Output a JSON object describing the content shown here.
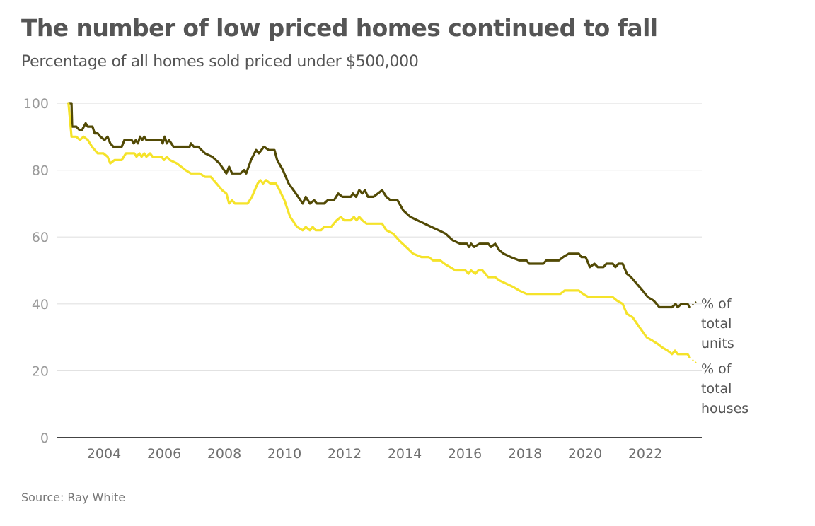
{
  "header": {
    "title": "The number of low priced homes continued to fall",
    "subtitle": "Percentage of all homes sold priced under $500,000"
  },
  "footer": {
    "source": "Source: Ray White"
  },
  "chart_data": {
    "type": "line",
    "title": "The number of low priced homes continued to fall",
    "subtitle": "Percentage of all homes sold priced under $500,000",
    "xlabel": "",
    "ylabel": "",
    "xlim": [
      2002.7,
      2023.9
    ],
    "ylim": [
      0,
      100
    ],
    "yticks": [
      0,
      20,
      40,
      60,
      80,
      100
    ],
    "xticks": [
      2004,
      2006,
      2008,
      2010,
      2012,
      2014,
      2016,
      2018,
      2020,
      2022
    ],
    "grid": true,
    "legend": "direct labels at right end of lines",
    "source": "Source: Ray White",
    "series": [
      {
        "name": "% of total units",
        "label_lines": [
          "% of",
          "total",
          "units"
        ],
        "color": "#524a05",
        "points": [
          [
            2002.82,
            100
          ],
          [
            2002.92,
            100
          ],
          [
            2002.94,
            93
          ],
          [
            2003.08,
            93
          ],
          [
            2003.18,
            92
          ],
          [
            2003.27,
            92
          ],
          [
            2003.39,
            94
          ],
          [
            2003.46,
            93
          ],
          [
            2003.62,
            93
          ],
          [
            2003.69,
            91
          ],
          [
            2003.79,
            91
          ],
          [
            2003.88,
            90
          ],
          [
            2004.02,
            89
          ],
          [
            2004.12,
            90
          ],
          [
            2004.21,
            88
          ],
          [
            2004.31,
            87
          ],
          [
            2004.59,
            87
          ],
          [
            2004.68,
            89
          ],
          [
            2004.92,
            89
          ],
          [
            2004.99,
            88
          ],
          [
            2005.06,
            89
          ],
          [
            2005.13,
            88
          ],
          [
            2005.2,
            90
          ],
          [
            2005.27,
            89
          ],
          [
            2005.34,
            90
          ],
          [
            2005.41,
            89
          ],
          [
            2005.91,
            89
          ],
          [
            2005.95,
            88
          ],
          [
            2006.02,
            90
          ],
          [
            2006.09,
            88
          ],
          [
            2006.16,
            89
          ],
          [
            2006.24,
            88
          ],
          [
            2006.31,
            87
          ],
          [
            2006.85,
            87
          ],
          [
            2006.89,
            88
          ],
          [
            2006.99,
            87
          ],
          [
            2007.13,
            87
          ],
          [
            2007.36,
            85
          ],
          [
            2007.6,
            84
          ],
          [
            2007.84,
            82
          ],
          [
            2008.07,
            79
          ],
          [
            2008.16,
            81
          ],
          [
            2008.26,
            79
          ],
          [
            2008.54,
            79
          ],
          [
            2008.66,
            80
          ],
          [
            2008.73,
            79
          ],
          [
            2008.89,
            83
          ],
          [
            2009.06,
            86
          ],
          [
            2009.15,
            85
          ],
          [
            2009.32,
            87
          ],
          [
            2009.48,
            86
          ],
          [
            2009.67,
            86
          ],
          [
            2009.76,
            83
          ],
          [
            2009.95,
            80
          ],
          [
            2010.14,
            76
          ],
          [
            2010.38,
            73
          ],
          [
            2010.61,
            70
          ],
          [
            2010.71,
            72
          ],
          [
            2010.85,
            70
          ],
          [
            2010.99,
            71
          ],
          [
            2011.08,
            70
          ],
          [
            2011.32,
            70
          ],
          [
            2011.44,
            71
          ],
          [
            2011.65,
            71
          ],
          [
            2011.79,
            73
          ],
          [
            2011.93,
            72
          ],
          [
            2012.21,
            72
          ],
          [
            2012.28,
            73
          ],
          [
            2012.38,
            72
          ],
          [
            2012.49,
            74
          ],
          [
            2012.59,
            73
          ],
          [
            2012.68,
            74
          ],
          [
            2012.78,
            72
          ],
          [
            2012.96,
            72
          ],
          [
            2013.11,
            73
          ],
          [
            2013.25,
            74
          ],
          [
            2013.39,
            72
          ],
          [
            2013.53,
            71
          ],
          [
            2013.76,
            71
          ],
          [
            2013.95,
            68
          ],
          [
            2014.19,
            66
          ],
          [
            2014.42,
            65
          ],
          [
            2014.66,
            64
          ],
          [
            2014.89,
            63
          ],
          [
            2015.13,
            62
          ],
          [
            2015.36,
            61
          ],
          [
            2015.6,
            59
          ],
          [
            2015.84,
            58
          ],
          [
            2016.07,
            58
          ],
          [
            2016.14,
            57
          ],
          [
            2016.21,
            58
          ],
          [
            2016.31,
            57
          ],
          [
            2016.49,
            58
          ],
          [
            2016.78,
            58
          ],
          [
            2016.87,
            57
          ],
          [
            2017.01,
            58
          ],
          [
            2017.15,
            56
          ],
          [
            2017.29,
            55
          ],
          [
            2017.53,
            54
          ],
          [
            2017.81,
            53
          ],
          [
            2018.05,
            53
          ],
          [
            2018.14,
            52
          ],
          [
            2018.61,
            52
          ],
          [
            2018.71,
            53
          ],
          [
            2019.13,
            53
          ],
          [
            2019.27,
            54
          ],
          [
            2019.46,
            55
          ],
          [
            2019.79,
            55
          ],
          [
            2019.88,
            54
          ],
          [
            2020.02,
            54
          ],
          [
            2020.16,
            51
          ],
          [
            2020.31,
            52
          ],
          [
            2020.42,
            51
          ],
          [
            2020.61,
            51
          ],
          [
            2020.71,
            52
          ],
          [
            2020.92,
            52
          ],
          [
            2021.01,
            51
          ],
          [
            2021.11,
            52
          ],
          [
            2021.25,
            52
          ],
          [
            2021.39,
            49
          ],
          [
            2021.53,
            48
          ],
          [
            2021.72,
            46
          ],
          [
            2021.91,
            44
          ],
          [
            2022.09,
            42
          ],
          [
            2022.28,
            41
          ],
          [
            2022.47,
            39
          ],
          [
            2022.89,
            39
          ],
          [
            2023.01,
            40
          ],
          [
            2023.08,
            39
          ],
          [
            2023.2,
            40
          ],
          [
            2023.41,
            40
          ],
          [
            2023.48,
            39
          ]
        ],
        "projected_to": [
          2023.74,
          41
        ]
      },
      {
        "name": "% of total houses",
        "label_lines": [
          "% of",
          "total",
          "houses"
        ],
        "color": "#f5e32a",
        "points": [
          [
            2002.82,
            100
          ],
          [
            2002.92,
            90
          ],
          [
            2003.08,
            90
          ],
          [
            2003.2,
            89
          ],
          [
            2003.32,
            90
          ],
          [
            2003.46,
            89
          ],
          [
            2003.6,
            87
          ],
          [
            2003.79,
            85
          ],
          [
            2003.98,
            85
          ],
          [
            2004.12,
            84
          ],
          [
            2004.21,
            82
          ],
          [
            2004.35,
            83
          ],
          [
            2004.59,
            83
          ],
          [
            2004.73,
            85
          ],
          [
            2005.01,
            85
          ],
          [
            2005.08,
            84
          ],
          [
            2005.18,
            85
          ],
          [
            2005.25,
            84
          ],
          [
            2005.34,
            85
          ],
          [
            2005.41,
            84
          ],
          [
            2005.53,
            85
          ],
          [
            2005.62,
            84
          ],
          [
            2005.91,
            84
          ],
          [
            2006.0,
            83
          ],
          [
            2006.09,
            84
          ],
          [
            2006.19,
            83
          ],
          [
            2006.42,
            82
          ],
          [
            2006.71,
            80
          ],
          [
            2006.89,
            79
          ],
          [
            2007.18,
            79
          ],
          [
            2007.36,
            78
          ],
          [
            2007.55,
            78
          ],
          [
            2007.74,
            76
          ],
          [
            2007.93,
            74
          ],
          [
            2008.07,
            73
          ],
          [
            2008.16,
            70
          ],
          [
            2008.26,
            71
          ],
          [
            2008.35,
            70
          ],
          [
            2008.78,
            70
          ],
          [
            2008.92,
            72
          ],
          [
            2009.11,
            76
          ],
          [
            2009.2,
            77
          ],
          [
            2009.29,
            76
          ],
          [
            2009.39,
            77
          ],
          [
            2009.53,
            76
          ],
          [
            2009.72,
            76
          ],
          [
            2009.84,
            74
          ],
          [
            2010.0,
            71
          ],
          [
            2010.19,
            66
          ],
          [
            2010.42,
            63
          ],
          [
            2010.61,
            62
          ],
          [
            2010.71,
            63
          ],
          [
            2010.85,
            62
          ],
          [
            2010.94,
            63
          ],
          [
            2011.04,
            62
          ],
          [
            2011.22,
            62
          ],
          [
            2011.32,
            63
          ],
          [
            2011.55,
            63
          ],
          [
            2011.74,
            65
          ],
          [
            2011.88,
            66
          ],
          [
            2011.98,
            65
          ],
          [
            2012.21,
            65
          ],
          [
            2012.31,
            66
          ],
          [
            2012.4,
            65
          ],
          [
            2012.49,
            66
          ],
          [
            2012.59,
            65
          ],
          [
            2012.73,
            64
          ],
          [
            2013.25,
            64
          ],
          [
            2013.39,
            62
          ],
          [
            2013.62,
            61
          ],
          [
            2013.81,
            59
          ],
          [
            2014.05,
            57
          ],
          [
            2014.28,
            55
          ],
          [
            2014.56,
            54
          ],
          [
            2014.8,
            54
          ],
          [
            2014.94,
            53
          ],
          [
            2015.18,
            53
          ],
          [
            2015.32,
            52
          ],
          [
            2015.51,
            51
          ],
          [
            2015.69,
            50
          ],
          [
            2016.02,
            50
          ],
          [
            2016.12,
            49
          ],
          [
            2016.21,
            50
          ],
          [
            2016.35,
            49
          ],
          [
            2016.45,
            50
          ],
          [
            2016.59,
            50
          ],
          [
            2016.78,
            48
          ],
          [
            2017.01,
            48
          ],
          [
            2017.15,
            47
          ],
          [
            2017.39,
            46
          ],
          [
            2017.62,
            45
          ],
          [
            2017.81,
            44
          ],
          [
            2018.05,
            43
          ],
          [
            2019.18,
            43
          ],
          [
            2019.32,
            44
          ],
          [
            2019.79,
            44
          ],
          [
            2019.93,
            43
          ],
          [
            2020.12,
            42
          ],
          [
            2020.92,
            42
          ],
          [
            2021.06,
            41
          ],
          [
            2021.25,
            40
          ],
          [
            2021.39,
            37
          ],
          [
            2021.58,
            36
          ],
          [
            2021.81,
            33
          ],
          [
            2022.05,
            30
          ],
          [
            2022.24,
            29
          ],
          [
            2022.42,
            28
          ],
          [
            2022.56,
            27
          ],
          [
            2022.75,
            26
          ],
          [
            2022.89,
            25
          ],
          [
            2022.99,
            26
          ],
          [
            2023.08,
            25
          ],
          [
            2023.41,
            25
          ],
          [
            2023.48,
            24
          ]
        ],
        "projected_to": [
          2023.74,
          22
        ]
      }
    ]
  }
}
